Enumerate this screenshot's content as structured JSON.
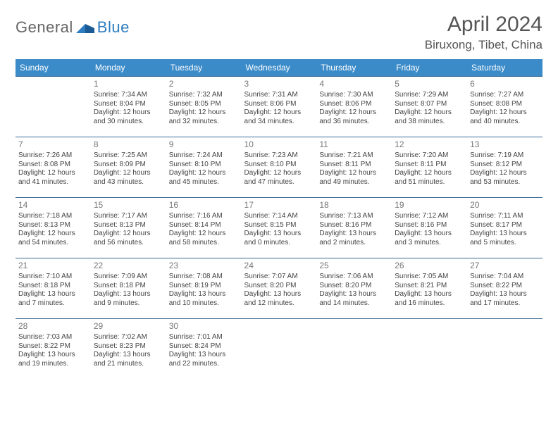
{
  "logo": {
    "general": "General",
    "blue": "Blue"
  },
  "title": "April 2024",
  "location": "Biruxong, Tibet, China",
  "colors": {
    "header_bg": "#3b8bc9",
    "header_text": "#ffffff",
    "border": "#3b6a95",
    "daynum": "#777777",
    "body_text": "#444444",
    "title_color": "#555555",
    "logo_blue": "#2d7dc0"
  },
  "weekdays": [
    "Sunday",
    "Monday",
    "Tuesday",
    "Wednesday",
    "Thursday",
    "Friday",
    "Saturday"
  ],
  "weeks": [
    [
      null,
      {
        "n": "1",
        "sr": "Sunrise: 7:34 AM",
        "ss": "Sunset: 8:04 PM",
        "d1": "Daylight: 12 hours",
        "d2": "and 30 minutes."
      },
      {
        "n": "2",
        "sr": "Sunrise: 7:32 AM",
        "ss": "Sunset: 8:05 PM",
        "d1": "Daylight: 12 hours",
        "d2": "and 32 minutes."
      },
      {
        "n": "3",
        "sr": "Sunrise: 7:31 AM",
        "ss": "Sunset: 8:06 PM",
        "d1": "Daylight: 12 hours",
        "d2": "and 34 minutes."
      },
      {
        "n": "4",
        "sr": "Sunrise: 7:30 AM",
        "ss": "Sunset: 8:06 PM",
        "d1": "Daylight: 12 hours",
        "d2": "and 36 minutes."
      },
      {
        "n": "5",
        "sr": "Sunrise: 7:29 AM",
        "ss": "Sunset: 8:07 PM",
        "d1": "Daylight: 12 hours",
        "d2": "and 38 minutes."
      },
      {
        "n": "6",
        "sr": "Sunrise: 7:27 AM",
        "ss": "Sunset: 8:08 PM",
        "d1": "Daylight: 12 hours",
        "d2": "and 40 minutes."
      }
    ],
    [
      {
        "n": "7",
        "sr": "Sunrise: 7:26 AM",
        "ss": "Sunset: 8:08 PM",
        "d1": "Daylight: 12 hours",
        "d2": "and 41 minutes."
      },
      {
        "n": "8",
        "sr": "Sunrise: 7:25 AM",
        "ss": "Sunset: 8:09 PM",
        "d1": "Daylight: 12 hours",
        "d2": "and 43 minutes."
      },
      {
        "n": "9",
        "sr": "Sunrise: 7:24 AM",
        "ss": "Sunset: 8:10 PM",
        "d1": "Daylight: 12 hours",
        "d2": "and 45 minutes."
      },
      {
        "n": "10",
        "sr": "Sunrise: 7:23 AM",
        "ss": "Sunset: 8:10 PM",
        "d1": "Daylight: 12 hours",
        "d2": "and 47 minutes."
      },
      {
        "n": "11",
        "sr": "Sunrise: 7:21 AM",
        "ss": "Sunset: 8:11 PM",
        "d1": "Daylight: 12 hours",
        "d2": "and 49 minutes."
      },
      {
        "n": "12",
        "sr": "Sunrise: 7:20 AM",
        "ss": "Sunset: 8:11 PM",
        "d1": "Daylight: 12 hours",
        "d2": "and 51 minutes."
      },
      {
        "n": "13",
        "sr": "Sunrise: 7:19 AM",
        "ss": "Sunset: 8:12 PM",
        "d1": "Daylight: 12 hours",
        "d2": "and 53 minutes."
      }
    ],
    [
      {
        "n": "14",
        "sr": "Sunrise: 7:18 AM",
        "ss": "Sunset: 8:13 PM",
        "d1": "Daylight: 12 hours",
        "d2": "and 54 minutes."
      },
      {
        "n": "15",
        "sr": "Sunrise: 7:17 AM",
        "ss": "Sunset: 8:13 PM",
        "d1": "Daylight: 12 hours",
        "d2": "and 56 minutes."
      },
      {
        "n": "16",
        "sr": "Sunrise: 7:16 AM",
        "ss": "Sunset: 8:14 PM",
        "d1": "Daylight: 12 hours",
        "d2": "and 58 minutes."
      },
      {
        "n": "17",
        "sr": "Sunrise: 7:14 AM",
        "ss": "Sunset: 8:15 PM",
        "d1": "Daylight: 13 hours",
        "d2": "and 0 minutes."
      },
      {
        "n": "18",
        "sr": "Sunrise: 7:13 AM",
        "ss": "Sunset: 8:16 PM",
        "d1": "Daylight: 13 hours",
        "d2": "and 2 minutes."
      },
      {
        "n": "19",
        "sr": "Sunrise: 7:12 AM",
        "ss": "Sunset: 8:16 PM",
        "d1": "Daylight: 13 hours",
        "d2": "and 3 minutes."
      },
      {
        "n": "20",
        "sr": "Sunrise: 7:11 AM",
        "ss": "Sunset: 8:17 PM",
        "d1": "Daylight: 13 hours",
        "d2": "and 5 minutes."
      }
    ],
    [
      {
        "n": "21",
        "sr": "Sunrise: 7:10 AM",
        "ss": "Sunset: 8:18 PM",
        "d1": "Daylight: 13 hours",
        "d2": "and 7 minutes."
      },
      {
        "n": "22",
        "sr": "Sunrise: 7:09 AM",
        "ss": "Sunset: 8:18 PM",
        "d1": "Daylight: 13 hours",
        "d2": "and 9 minutes."
      },
      {
        "n": "23",
        "sr": "Sunrise: 7:08 AM",
        "ss": "Sunset: 8:19 PM",
        "d1": "Daylight: 13 hours",
        "d2": "and 10 minutes."
      },
      {
        "n": "24",
        "sr": "Sunrise: 7:07 AM",
        "ss": "Sunset: 8:20 PM",
        "d1": "Daylight: 13 hours",
        "d2": "and 12 minutes."
      },
      {
        "n": "25",
        "sr": "Sunrise: 7:06 AM",
        "ss": "Sunset: 8:20 PM",
        "d1": "Daylight: 13 hours",
        "d2": "and 14 minutes."
      },
      {
        "n": "26",
        "sr": "Sunrise: 7:05 AM",
        "ss": "Sunset: 8:21 PM",
        "d1": "Daylight: 13 hours",
        "d2": "and 16 minutes."
      },
      {
        "n": "27",
        "sr": "Sunrise: 7:04 AM",
        "ss": "Sunset: 8:22 PM",
        "d1": "Daylight: 13 hours",
        "d2": "and 17 minutes."
      }
    ],
    [
      {
        "n": "28",
        "sr": "Sunrise: 7:03 AM",
        "ss": "Sunset: 8:22 PM",
        "d1": "Daylight: 13 hours",
        "d2": "and 19 minutes."
      },
      {
        "n": "29",
        "sr": "Sunrise: 7:02 AM",
        "ss": "Sunset: 8:23 PM",
        "d1": "Daylight: 13 hours",
        "d2": "and 21 minutes."
      },
      {
        "n": "30",
        "sr": "Sunrise: 7:01 AM",
        "ss": "Sunset: 8:24 PM",
        "d1": "Daylight: 13 hours",
        "d2": "and 22 minutes."
      },
      null,
      null,
      null,
      null
    ]
  ]
}
